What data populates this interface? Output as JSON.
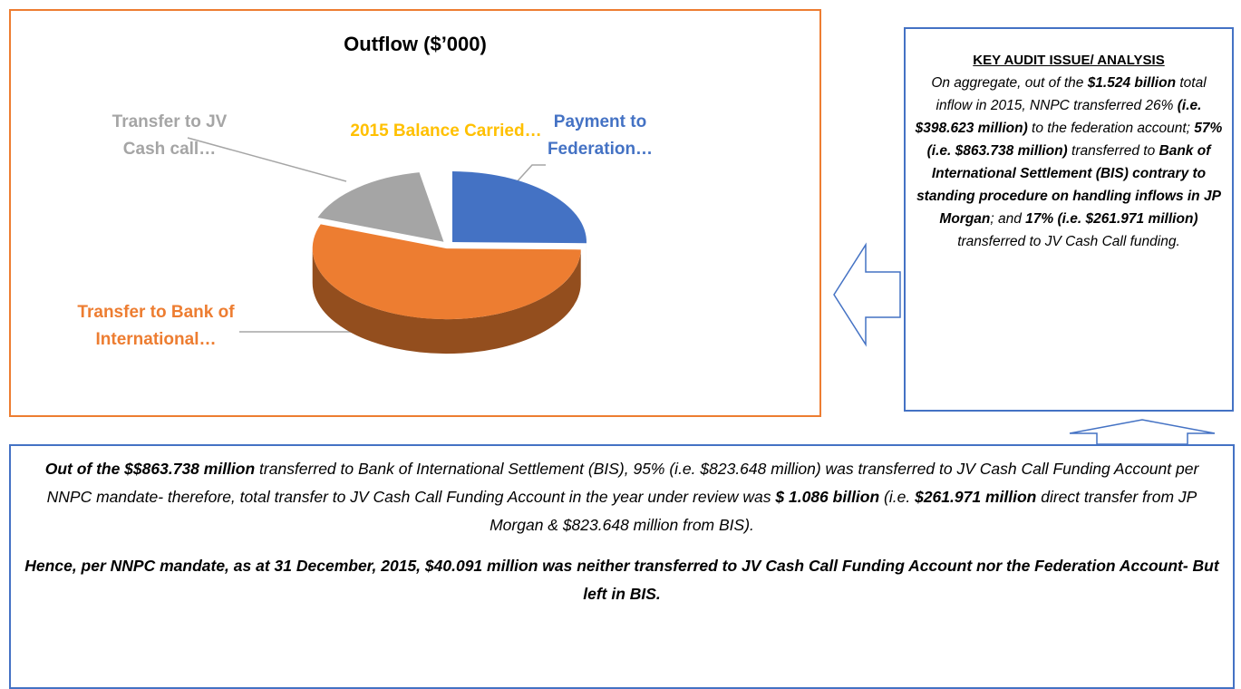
{
  "chart_data": {
    "type": "pie",
    "title": "Outflow ($’000)",
    "categories": [
      "Payment to Federation…",
      "Transfer to Bank of International…",
      "Transfer to JV Cash call…",
      "2015 Balance Carried…"
    ],
    "values": [
      26,
      57,
      17,
      3
    ],
    "colors": [
      "#4472c4",
      "#ed7d31",
      "#a5a5a5",
      "#ffffff"
    ],
    "label_colors": [
      "#4472c4",
      "#ed7d31",
      "#a5a5a5",
      "#ffc000"
    ]
  },
  "analysis": {
    "heading": "KEY AUDIT ISSUE/ ANALYSIS",
    "runs": [
      {
        "text": "On aggregate, out of the ",
        "bold": false
      },
      {
        "text": "$1.524 billion",
        "bold": true
      },
      {
        "text": " total inflow in 2015, NNPC transferred 26% ",
        "bold": false
      },
      {
        "text": "(i.e. $398.623 million)",
        "bold": true
      },
      {
        "text": " to the federation account; ",
        "bold": false
      },
      {
        "text": "57% (i.e. $863.738 million)",
        "bold": true
      },
      {
        "text": " transferred to ",
        "bold": false
      },
      {
        "text": "Bank of International Settlement (BIS) contrary to standing procedure on handling inflows in JP Morgan",
        "bold": true
      },
      {
        "text": "; and ",
        "bold": false
      },
      {
        "text": "17% (i.e. $261.971 million)",
        "bold": true
      },
      {
        "text": " transferred to JV Cash Call funding.",
        "bold": false
      }
    ]
  },
  "summary": {
    "paragraphs": [
      {
        "runs": [
          {
            "text": "Out of the $$863.738 million",
            "bold": true
          },
          {
            "text": " transferred to Bank of International Settlement (BIS), 95% (i.e. $823.648 million) was transferred to JV Cash Call Funding Account per NNPC mandate- therefore, total transfer to JV Cash Call Funding Account in the year under review was ",
            "bold": false
          },
          {
            "text": "$ 1.086 billion",
            "bold": true
          },
          {
            "text": " (i.e. ",
            "bold": false
          },
          {
            "text": "$261.971 million",
            "bold": true
          },
          {
            "text": " direct transfer from JP Morgan & $823.648 million from BIS).",
            "bold": false
          }
        ]
      },
      {
        "runs": [
          {
            "text": "Hence, per NNPC mandate, as at 31 December, 2015, $40.091 million was neither transferred to JV Cash Call Funding Account nor the Federation Account- But left in BIS.",
            "bold": true
          }
        ]
      }
    ]
  }
}
